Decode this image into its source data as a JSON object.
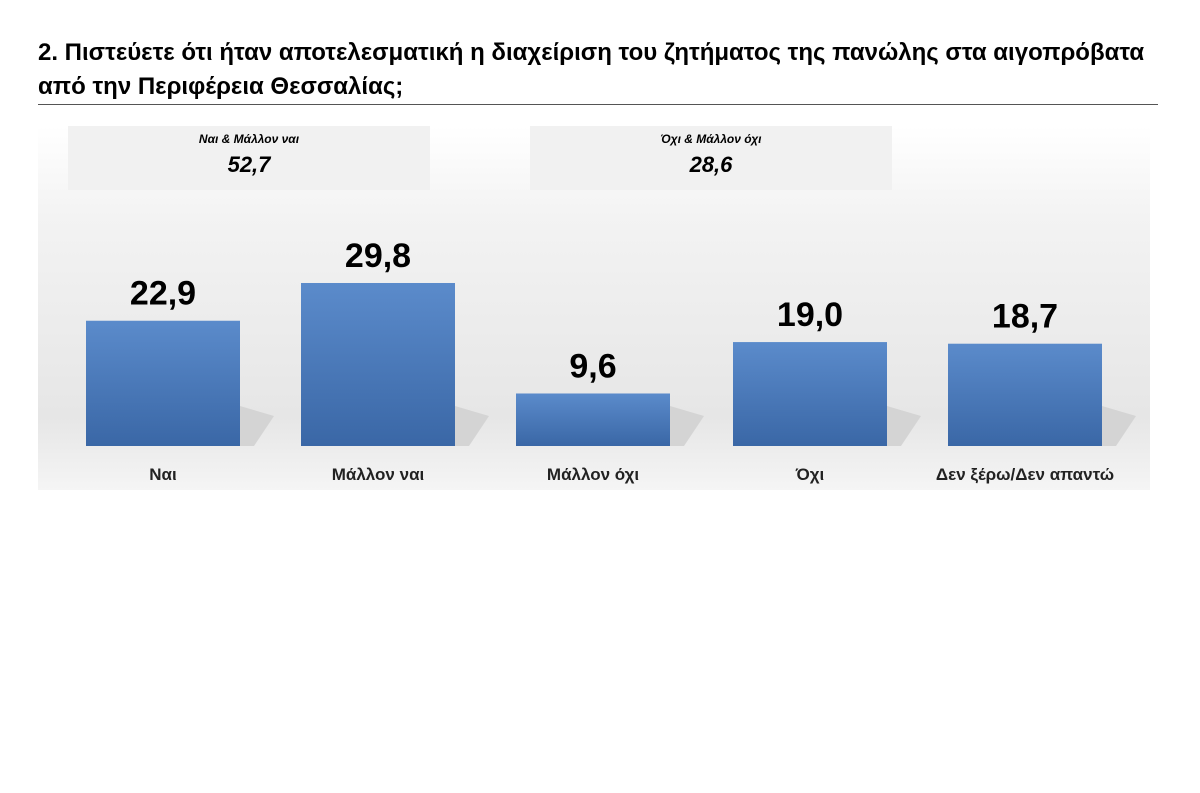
{
  "title": "2. Πιστεύετε ότι ήταν αποτελεσματική η  διαχείριση του ζητήματος της πανώλης στα αιγοπρόβατα από την Περιφέρεια Θεσσαλίας;",
  "groups": [
    {
      "label": "Ναι & Μάλλον ναι",
      "value": "52,7"
    },
    {
      "label": "Όχι & Μάλλον όχι",
      "value": "28,6"
    }
  ],
  "colors": {
    "bar_top": "#5b8bcb",
    "bar_bottom": "#3a67a6",
    "shadow": "#d4d4d4"
  },
  "chart_data": {
    "type": "bar",
    "categories": [
      "Ναι",
      "Μάλλον ναι",
      "Μάλλον όχι",
      "Όχι",
      "Δεν ξέρω/Δεν απαντώ"
    ],
    "values": [
      22.9,
      29.8,
      9.6,
      19.0,
      18.7
    ],
    "value_labels": [
      "22,9",
      "29,8",
      "9,6",
      "19,0",
      "18,7"
    ],
    "title": "2. Πιστεύετε ότι ήταν αποτελεσματική η  διαχείριση του ζητήματος της πανώλης στα αιγοπρόβατα από την Περιφέρεια Θεσσαλίας;",
    "xlabel": "",
    "ylabel": "",
    "ylim": [
      0,
      32
    ],
    "grid": false,
    "legend": "none"
  }
}
